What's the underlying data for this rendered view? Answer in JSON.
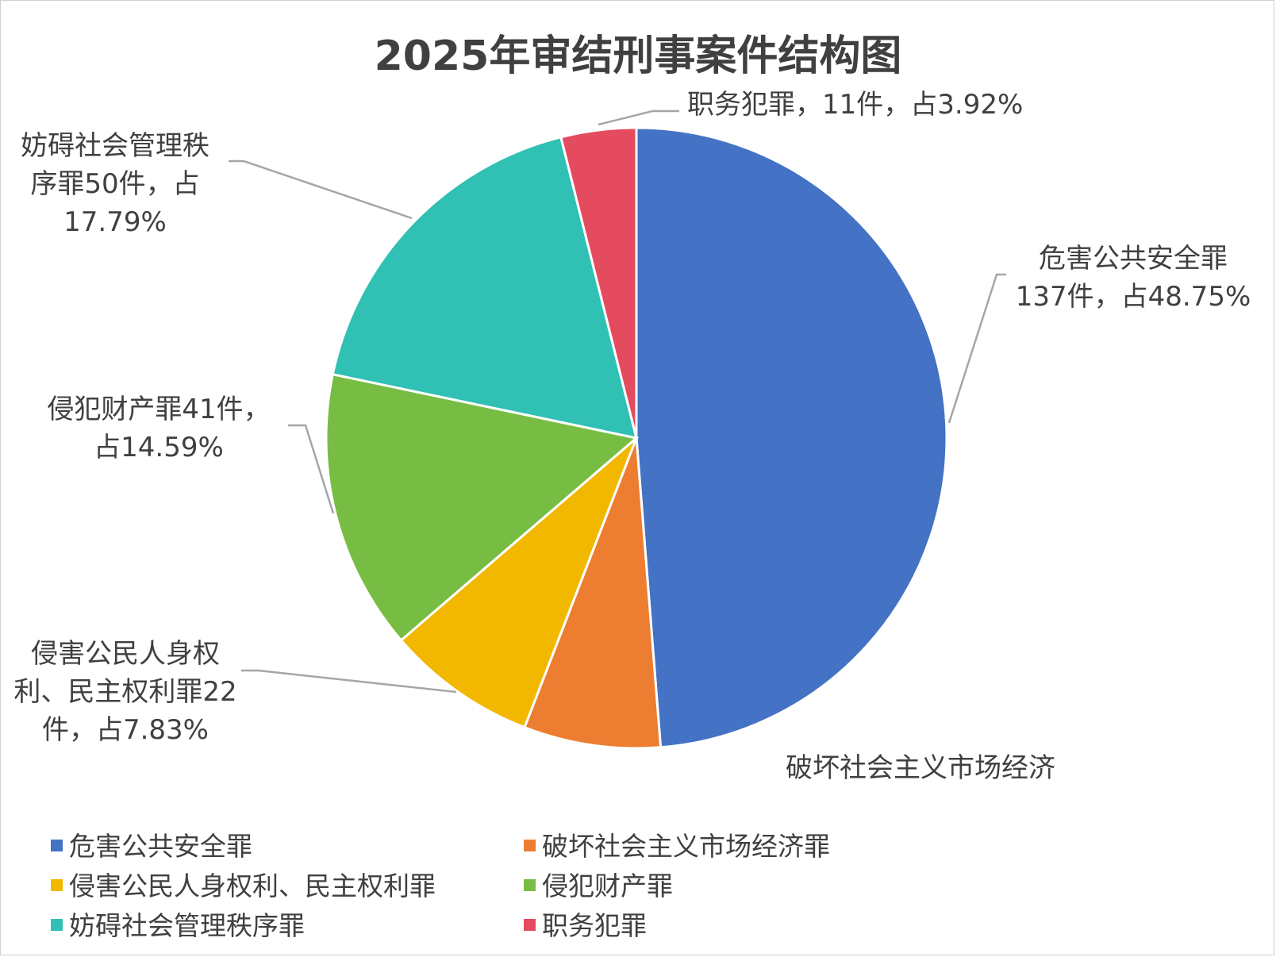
{
  "chart_data": {
    "type": "pie",
    "title": "2025年审结刑事案件结构图",
    "series": [
      {
        "name": "危害公共安全罪",
        "count": 137,
        "percent": 48.75,
        "color": "#4472C4",
        "label_lines": [
          "危害公共安全罪",
          "137件，占48.75%"
        ]
      },
      {
        "name": "破坏社会主义市场经济罪",
        "count": 20,
        "percent": 7.12,
        "color": "#ED7D31",
        "label_lines": [
          "破坏社会主义市场经济"
        ]
      },
      {
        "name": "侵害公民人身权利、民主权利罪",
        "count": 22,
        "percent": 7.83,
        "color": "#F2B800",
        "label_lines": [
          "侵害公民人身权",
          "利、民主权利罪22",
          "件，占7.83%"
        ]
      },
      {
        "name": "侵犯财产罪",
        "count": 41,
        "percent": 14.59,
        "color": "#77BD43",
        "label_lines": [
          "侵犯财产罪41件，",
          "占14.59%"
        ]
      },
      {
        "name": "妨碍社会管理秩序罪",
        "count": 50,
        "percent": 17.79,
        "color": "#30C0B4",
        "label_lines": [
          "妨碍社会管理秩",
          "序罪50件，占",
          "17.79%"
        ]
      },
      {
        "name": "职务犯罪",
        "count": 11,
        "percent": 3.92,
        "color": "#E54B5E",
        "label_lines": [
          "职务犯罪，11件，占3.92%"
        ]
      }
    ],
    "legend": {
      "position": "bottom",
      "items": [
        "危害公共安全罪",
        "破坏社会主义市场经济罪",
        "侵害公民人身权利、民主权利罪",
        "侵犯财产罪",
        "妨碍社会管理秩序罪",
        "职务犯罪"
      ]
    }
  }
}
